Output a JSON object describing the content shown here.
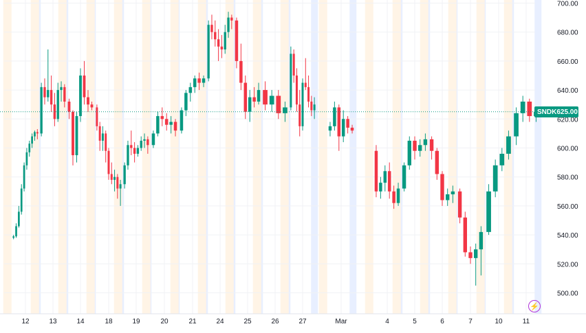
{
  "symbol": "SNDK",
  "last_price_label": "625.00",
  "colors": {
    "up": "#089981",
    "down": "#f23645",
    "premarket": "#fff4e6",
    "afterhours": "#e8efff",
    "pricetag": "#089981",
    "price_line": "#089981",
    "logo": "#b033d8"
  },
  "icons": {
    "logo": "lightning-bolt-icon"
  },
  "chart_data": {
    "type": "candlestick",
    "y_axis": {
      "min": 490,
      "max": 700,
      "ticks": [
        700,
        680,
        660,
        640,
        620,
        600,
        580,
        560,
        540,
        520,
        500
      ]
    },
    "x_ticks": [
      "12",
      "13",
      "14",
      "18",
      "19",
      "20",
      "21",
      "24",
      "25",
      "26",
      "27",
      "Mar",
      "4",
      "5",
      "6",
      "7",
      "10",
      "11"
    ],
    "last_price": 625,
    "price_line": 625,
    "grid": true,
    "extended_hours_shading": true,
    "sessions": [
      {
        "label": "12",
        "ohlc": [
          [
            538,
            540,
            537,
            539
          ],
          [
            539,
            548,
            538,
            546
          ],
          [
            546,
            560,
            545,
            556
          ],
          [
            556,
            575,
            554,
            572
          ],
          [
            572,
            590,
            570,
            588
          ],
          [
            588,
            600,
            585,
            597
          ],
          [
            597,
            605,
            594,
            603
          ],
          [
            603,
            610,
            600,
            608
          ],
          [
            608,
            612,
            605,
            611
          ],
          [
            611,
            613,
            606,
            610
          ]
        ]
      },
      {
        "label": "13",
        "ohlc": [
          [
            610,
            645,
            608,
            642
          ],
          [
            642,
            648,
            630,
            635
          ],
          [
            635,
            668,
            632,
            640
          ],
          [
            640,
            650,
            625,
            630
          ],
          [
            630,
            638,
            615,
            620
          ],
          [
            620,
            645,
            618,
            640
          ],
          [
            640,
            646,
            632,
            642
          ],
          [
            642,
            644,
            628,
            632
          ]
        ]
      },
      {
        "label": "14",
        "ohlc": [
          [
            632,
            634,
            620,
            625
          ],
          [
            625,
            626,
            588,
            595
          ],
          [
            595,
            625,
            590,
            622
          ],
          [
            622,
            655,
            618,
            650
          ],
          [
            650,
            660,
            630,
            635
          ],
          [
            635,
            640,
            625,
            630
          ],
          [
            630,
            632,
            626,
            628
          ]
        ]
      },
      {
        "label": "18",
        "ohlc": [
          [
            628,
            630,
            612,
            615
          ],
          [
            615,
            618,
            598,
            605
          ],
          [
            605,
            615,
            598,
            610
          ],
          [
            610,
            612,
            590,
            598
          ],
          [
            598,
            600,
            578,
            582
          ],
          [
            582,
            590,
            575,
            578
          ],
          [
            578,
            585,
            570,
            580
          ],
          [
            580,
            582,
            565,
            572
          ],
          [
            572,
            578,
            560,
            575
          ]
        ]
      },
      {
        "label": "19",
        "ohlc": [
          [
            575,
            590,
            572,
            588
          ],
          [
            588,
            605,
            585,
            602
          ],
          [
            602,
            612,
            595,
            600
          ],
          [
            600,
            604,
            590,
            596
          ],
          [
            596,
            602,
            594,
            600
          ],
          [
            600,
            608,
            598,
            605
          ],
          [
            605,
            610,
            600,
            606
          ],
          [
            606,
            608,
            596,
            602
          ]
        ]
      },
      {
        "label": "20",
        "ohlc": [
          [
            602,
            612,
            600,
            610
          ],
          [
            610,
            625,
            608,
            622
          ],
          [
            622,
            628,
            615,
            620
          ],
          [
            620,
            624,
            612,
            616
          ],
          [
            616,
            622,
            610,
            618
          ],
          [
            618,
            620,
            608,
            612
          ]
        ]
      },
      {
        "label": "21",
        "ohlc": [
          [
            612,
            628,
            610,
            626
          ],
          [
            626,
            640,
            622,
            638
          ],
          [
            638,
            645,
            632,
            642
          ],
          [
            642,
            650,
            638,
            648
          ],
          [
            648,
            652,
            640,
            645
          ],
          [
            645,
            650,
            642,
            648
          ]
        ]
      },
      {
        "label": "24",
        "ohlc": [
          [
            648,
            688,
            646,
            685
          ],
          [
            685,
            692,
            675,
            680
          ],
          [
            680,
            688,
            670,
            675
          ],
          [
            675,
            682,
            660,
            670
          ],
          [
            670,
            678,
            662,
            668
          ],
          [
            668,
            685,
            665,
            680
          ],
          [
            680,
            694,
            676,
            690
          ],
          [
            690,
            692,
            682,
            688
          ]
        ]
      },
      {
        "label": "25",
        "ohlc": [
          [
            688,
            690,
            655,
            660
          ],
          [
            660,
            672,
            640,
            645
          ],
          [
            645,
            650,
            620,
            625
          ],
          [
            625,
            640,
            618,
            635
          ],
          [
            635,
            642,
            628,
            632
          ],
          [
            632,
            645,
            630,
            640
          ]
        ]
      },
      {
        "label": "26",
        "ohlc": [
          [
            640,
            646,
            626,
            630
          ],
          [
            630,
            640,
            625,
            636
          ],
          [
            636,
            640,
            620,
            624
          ],
          [
            624,
            632,
            618,
            628
          ]
        ]
      },
      {
        "label": "27",
        "ohlc": [
          [
            628,
            670,
            626,
            665
          ],
          [
            665,
            668,
            645,
            650
          ],
          [
            650,
            655,
            625,
            630
          ],
          [
            630,
            640,
            608,
            615
          ],
          [
            615,
            648,
            612,
            645
          ],
          [
            645,
            662,
            640,
            642
          ],
          [
            642,
            650,
            628,
            632
          ],
          [
            632,
            636,
            622,
            626
          ],
          [
            626,
            635,
            620,
            630
          ]
        ]
      },
      {
        "label": "Mar",
        "ohlc": [
          [
            612,
            618,
            608,
            615
          ],
          [
            615,
            632,
            612,
            628
          ],
          [
            628,
            630,
            598,
            608
          ],
          [
            608,
            626,
            604,
            620
          ],
          [
            620,
            622,
            610,
            614
          ],
          [
            614,
            616,
            610,
            612
          ]
        ]
      },
      {
        "label": "4",
        "ohlc": [
          [
            598,
            602,
            566,
            570
          ],
          [
            570,
            580,
            565,
            576
          ],
          [
            576,
            588,
            570,
            584
          ],
          [
            584,
            590,
            565,
            570
          ],
          [
            570,
            574,
            558,
            562
          ],
          [
            562,
            576,
            560,
            572
          ]
        ]
      },
      {
        "label": "5",
        "ohlc": [
          [
            572,
            590,
            570,
            588
          ],
          [
            588,
            608,
            585,
            605
          ],
          [
            605,
            608,
            592,
            598
          ],
          [
            598,
            606,
            594,
            602
          ],
          [
            602,
            610,
            598,
            606
          ]
        ]
      },
      {
        "label": "6",
        "ohlc": [
          [
            606,
            608,
            592,
            598
          ],
          [
            598,
            600,
            578,
            582
          ],
          [
            582,
            584,
            560,
            564
          ],
          [
            564,
            572,
            560,
            568
          ],
          [
            568,
            574,
            562,
            570
          ]
        ]
      },
      {
        "label": "7",
        "ohlc": [
          [
            570,
            572,
            548,
            552
          ],
          [
            552,
            556,
            525,
            528
          ],
          [
            528,
            532,
            520,
            524
          ],
          [
            524,
            534,
            505,
            530
          ],
          [
            530,
            546,
            512,
            542
          ]
        ]
      },
      {
        "label": "10",
        "ohlc": [
          [
            542,
            575,
            540,
            570
          ],
          [
            570,
            592,
            566,
            588
          ],
          [
            588,
            600,
            584,
            596
          ],
          [
            596,
            612,
            592,
            608
          ]
        ]
      },
      {
        "label": "11",
        "ohlc": [
          [
            608,
            628,
            602,
            624
          ],
          [
            624,
            636,
            618,
            632
          ],
          [
            632,
            634,
            618,
            622
          ],
          [
            622,
            628,
            618,
            625
          ]
        ]
      }
    ]
  }
}
